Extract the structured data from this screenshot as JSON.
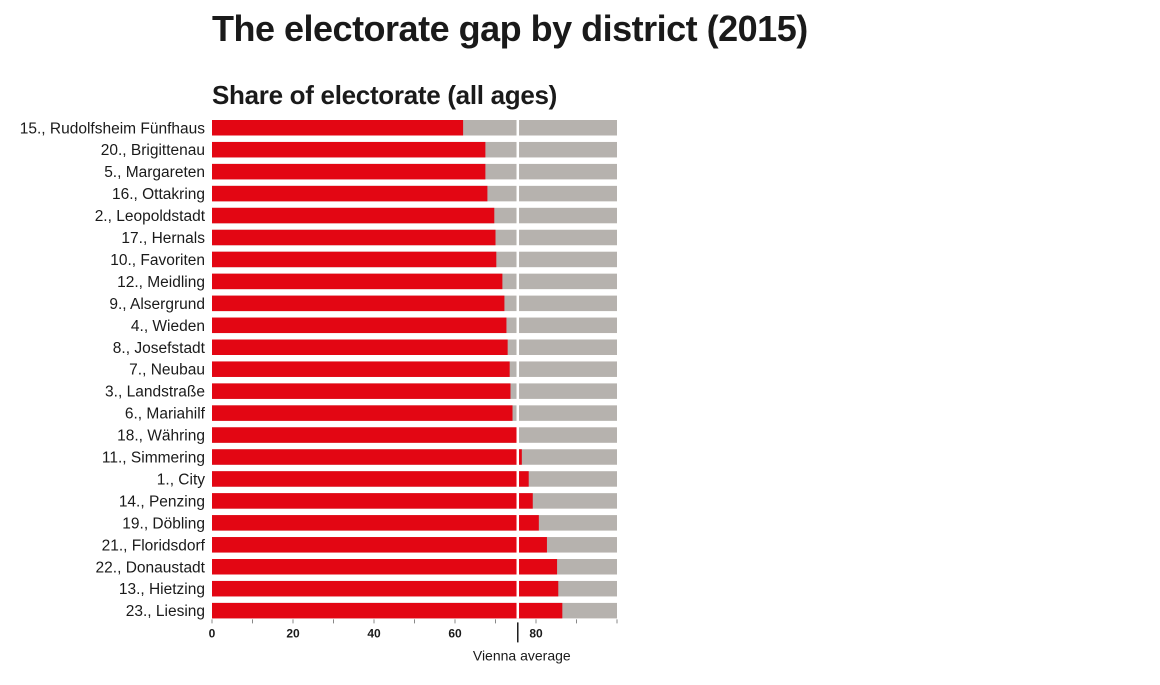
{
  "colors": {
    "bar": "#e30613",
    "remainder": "#b6b2ae",
    "average_line": "#ffffff",
    "text": "#1a1a1a"
  },
  "chart_data": {
    "type": "bar",
    "orientation": "horizontal",
    "stacked": true,
    "title": "The electorate gap by district (2015)",
    "subtitle": "Share of electorate (all ages)",
    "xlabel": "",
    "ylabel": "",
    "xlim": [
      0,
      100
    ],
    "xticks": [
      0,
      20,
      40,
      60,
      80
    ],
    "grid": false,
    "reference_line": {
      "label": "Vienna average",
      "value": 75.5
    },
    "categories": [
      "15., Rudolfsheim Fünfhaus",
      "20., Brigittenau",
      "5., Margareten",
      "16., Ottakring",
      "2., Leopoldstadt",
      "17., Hernals",
      "10., Favoriten",
      "12., Meidling",
      "9., Alsergrund",
      "4., Wieden",
      "8., Josefstadt",
      "7., Neubau",
      "3., Landstraße",
      "6., Mariahilf",
      "18., Währing",
      "11., Simmering",
      "1., City",
      "14., Penzing",
      "19., Döbling",
      "21., Floridsdorf",
      "22., Donaustadt",
      "13., Hietzing",
      "23., Liesing"
    ],
    "values": [
      62,
      67.5,
      67.5,
      68,
      69.7,
      70,
      70.2,
      71.7,
      72.2,
      72.7,
      73,
      73.5,
      73.7,
      74.2,
      75.2,
      76.5,
      78.2,
      79.2,
      80.7,
      82.7,
      85.2,
      85.5,
      86.5
    ]
  }
}
